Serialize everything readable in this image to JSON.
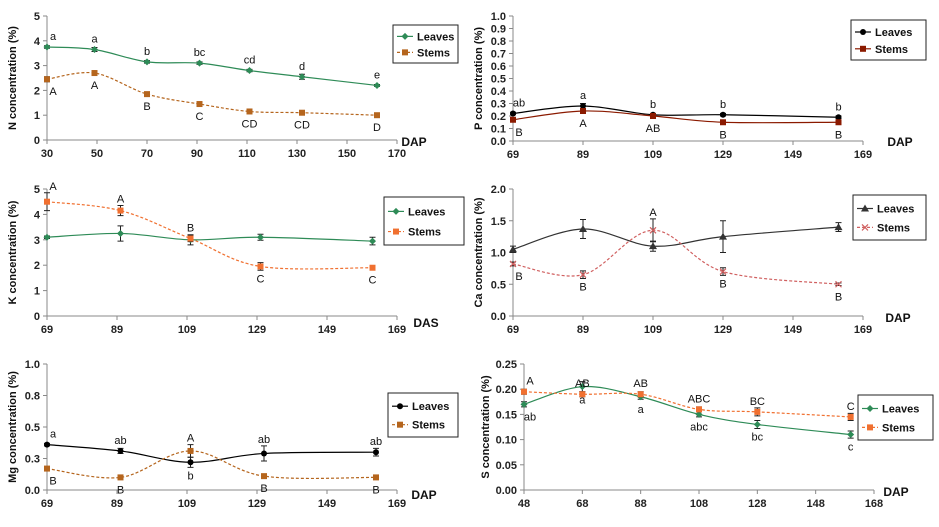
{
  "chart_data": [
    {
      "id": "N",
      "type": "line",
      "ylabel": "N concentration (%)",
      "xlabel": "DAP",
      "xlim": [
        30,
        170
      ],
      "xticks": [
        30,
        50,
        70,
        90,
        110,
        130,
        150,
        170
      ],
      "ylim": [
        0,
        5
      ],
      "yticks": [
        0,
        1,
        2,
        3,
        4,
        5
      ],
      "ydecimals": 0,
      "series": [
        {
          "name": "Leaves",
          "color": "#2e8b57",
          "marker": "diamond",
          "dashed": false,
          "labelPos": "above",
          "x": [
            30,
            49,
            70,
            91,
            111,
            132,
            162
          ],
          "y": [
            3.75,
            3.65,
            3.15,
            3.1,
            2.8,
            2.55,
            2.2
          ],
          "err": [
            0.05,
            0.08,
            0.05,
            0.05,
            0.05,
            0.1,
            0.04
          ],
          "labels": [
            "a",
            "a",
            "b",
            "bc",
            "cd",
            "d",
            "e"
          ]
        },
        {
          "name": "Stems",
          "color": "#b5651d",
          "marker": "square",
          "dashed": true,
          "labelPos": "below",
          "x": [
            30,
            49,
            70,
            91,
            111,
            132,
            162
          ],
          "y": [
            2.45,
            2.7,
            1.85,
            1.45,
            1.15,
            1.1,
            1.0
          ],
          "err": [
            0.1,
            0.06,
            0.05,
            0.08,
            0.05,
            0.05,
            0.04
          ],
          "labels": [
            "A",
            "A",
            "B",
            "C",
            "CD",
            "CD",
            "D"
          ]
        }
      ],
      "legend": [
        "Leaves",
        "Stems"
      ]
    },
    {
      "id": "P",
      "type": "line",
      "ylabel": "P concentration (%)",
      "xlabel": "DAP",
      "xlim": [
        69,
        169
      ],
      "xticks": [
        69,
        89,
        109,
        129,
        149,
        169
      ],
      "ylim": [
        0,
        1
      ],
      "yticks": [
        0,
        0.1,
        0.2,
        0.3,
        0.4,
        0.5,
        0.6,
        0.7,
        0.8,
        0.9,
        1.0
      ],
      "ydecimals": 1,
      "series": [
        {
          "name": "Leaves",
          "color": "#000000",
          "marker": "circle",
          "dashed": false,
          "labelPos": "above",
          "x": [
            69,
            89,
            109,
            129,
            162
          ],
          "y": [
            0.22,
            0.28,
            0.21,
            0.21,
            0.19
          ],
          "err": [
            0.01,
            0.02,
            0.01,
            0.01,
            0.01
          ],
          "labels": [
            "ab",
            "a",
            "b",
            "b",
            "b"
          ]
        },
        {
          "name": "Stems",
          "color": "#8b1a00",
          "marker": "square",
          "dashed": false,
          "labelPos": "below",
          "x": [
            69,
            89,
            109,
            129,
            162
          ],
          "y": [
            0.17,
            0.24,
            0.2,
            0.15,
            0.15
          ],
          "err": [
            0.01,
            0.01,
            0.01,
            0.01,
            0.01
          ],
          "labels": [
            "B",
            "A",
            "AB",
            "B",
            "B"
          ]
        }
      ],
      "legend": [
        "Leaves",
        "Stems"
      ]
    },
    {
      "id": "K",
      "type": "line",
      "ylabel": "K concentration (%)",
      "xlabel": "DAS",
      "xlim": [
        69,
        169
      ],
      "xticks": [
        69,
        89,
        109,
        129,
        149,
        169
      ],
      "ylim": [
        0,
        5
      ],
      "yticks": [
        0,
        1,
        2,
        3,
        4,
        5
      ],
      "ydecimals": 0,
      "series": [
        {
          "name": "Leaves",
          "color": "#2e8b57",
          "marker": "diamond",
          "dashed": false,
          "labelPos": "none",
          "x": [
            69,
            90,
            110,
            130,
            162
          ],
          "y": [
            3.1,
            3.25,
            3.0,
            3.1,
            2.95
          ],
          "err": [
            0.05,
            0.3,
            0.2,
            0.12,
            0.15
          ],
          "labels": [
            "",
            "",
            "",
            "",
            ""
          ]
        },
        {
          "name": "Stems",
          "color": "#f07030",
          "marker": "square",
          "dashed": true,
          "labelPos": "split",
          "x": [
            69,
            90,
            110,
            130,
            162
          ],
          "y": [
            4.5,
            4.15,
            3.05,
            1.95,
            1.9
          ],
          "err": [
            0.35,
            0.2,
            0.12,
            0.15,
            0.06
          ],
          "labels": [
            "A",
            "A",
            "B",
            "C",
            "C"
          ]
        }
      ],
      "legend": [
        "Leaves",
        "Stems"
      ]
    },
    {
      "id": "Ca",
      "type": "line",
      "ylabel": "Ca concentration (%)",
      "xlabel": "DAP",
      "xlim": [
        69,
        169
      ],
      "xticks": [
        69,
        89,
        109,
        129,
        149,
        169
      ],
      "ylim": [
        0,
        2
      ],
      "yticks": [
        0,
        0.5,
        1.0,
        1.5,
        2.0
      ],
      "ydecimals": 1,
      "series": [
        {
          "name": "Leaves",
          "color": "#333333",
          "marker": "triangle",
          "dashed": false,
          "labelPos": "none",
          "x": [
            69,
            89,
            109,
            129,
            162
          ],
          "y": [
            1.05,
            1.37,
            1.1,
            1.25,
            1.4
          ],
          "err": [
            0.05,
            0.15,
            0.08,
            0.25,
            0.07
          ],
          "labels": [
            "",
            "",
            "",
            "",
            ""
          ]
        },
        {
          "name": "Stems",
          "color": "#d06060",
          "marker": "cross",
          "dashed": true,
          "labelPos": "split",
          "x": [
            69,
            89,
            109,
            129,
            162
          ],
          "y": [
            0.82,
            0.65,
            1.35,
            0.7,
            0.5
          ],
          "err": [
            0.03,
            0.06,
            0.18,
            0.06,
            0.02
          ],
          "labels": [
            "B",
            "B",
            "A",
            "B",
            "B"
          ]
        }
      ],
      "legend": [
        "Leaves",
        "Stems"
      ]
    },
    {
      "id": "Mg",
      "type": "line",
      "ylabel": "Mg concentration (%)",
      "xlabel": "DAP",
      "xlim": [
        69,
        169
      ],
      "xticks": [
        69,
        89,
        109,
        129,
        149,
        169
      ],
      "ylim": [
        0,
        1
      ],
      "yticks": [
        0,
        0.3,
        0.5,
        0.8,
        1.0
      ],
      "ytickValues": [
        0,
        0.25,
        0.5,
        0.75,
        1.0
      ],
      "ydecimals": 1,
      "series": [
        {
          "name": "Leaves",
          "color": "#000000",
          "marker": "circle",
          "dashed": false,
          "labelPos": "split",
          "x": [
            69,
            90,
            110,
            131,
            163
          ],
          "y": [
            0.36,
            0.31,
            0.22,
            0.29,
            0.3
          ],
          "err": [
            0.01,
            0.02,
            0.04,
            0.06,
            0.03
          ],
          "labels": [
            "a",
            "ab",
            "b",
            "ab",
            "ab"
          ]
        },
        {
          "name": "Stems",
          "color": "#b5651d",
          "marker": "square",
          "dashed": true,
          "labelPos": "split",
          "x": [
            69,
            90,
            110,
            131,
            163
          ],
          "y": [
            0.17,
            0.1,
            0.31,
            0.11,
            0.1
          ],
          "err": [
            0.01,
            0.01,
            0.05,
            0.01,
            0.01
          ],
          "labels": [
            "B",
            "B",
            "A",
            "B",
            "B"
          ]
        }
      ],
      "legend": [
        "Leaves",
        "Stems"
      ]
    },
    {
      "id": "S",
      "type": "line",
      "ylabel": "S concentration (%)",
      "xlabel": "DAP",
      "xlim": [
        48,
        168
      ],
      "xticks": [
        48,
        68,
        88,
        108,
        128,
        148,
        168
      ],
      "ylim": [
        0,
        0.25
      ],
      "yticks": [
        0,
        0.05,
        0.1,
        0.15,
        0.2,
        0.25
      ],
      "ydecimals": 2,
      "series": [
        {
          "name": "Leaves",
          "color": "#2e8b57",
          "marker": "diamond",
          "dashed": false,
          "labelPos": "below",
          "x": [
            48,
            68,
            88,
            108,
            128,
            160
          ],
          "y": [
            0.17,
            0.205,
            0.185,
            0.15,
            0.13,
            0.11
          ],
          "err": [
            0.005,
            0.01,
            0.005,
            0.005,
            0.008,
            0.007
          ],
          "labels": [
            "ab",
            "a",
            "a",
            "abc",
            "bc",
            "c"
          ]
        },
        {
          "name": "Stems",
          "color": "#f07030",
          "marker": "square",
          "dashed": true,
          "labelPos": "above",
          "x": [
            48,
            68,
            88,
            108,
            128,
            160
          ],
          "y": [
            0.195,
            0.19,
            0.19,
            0.16,
            0.155,
            0.145
          ],
          "err": [
            0.005,
            0.005,
            0.005,
            0.005,
            0.008,
            0.007
          ],
          "labels": [
            "A",
            "AB",
            "AB",
            "ABC",
            "BC",
            "C"
          ]
        }
      ],
      "legend": [
        "Leaves",
        "Stems"
      ]
    }
  ]
}
